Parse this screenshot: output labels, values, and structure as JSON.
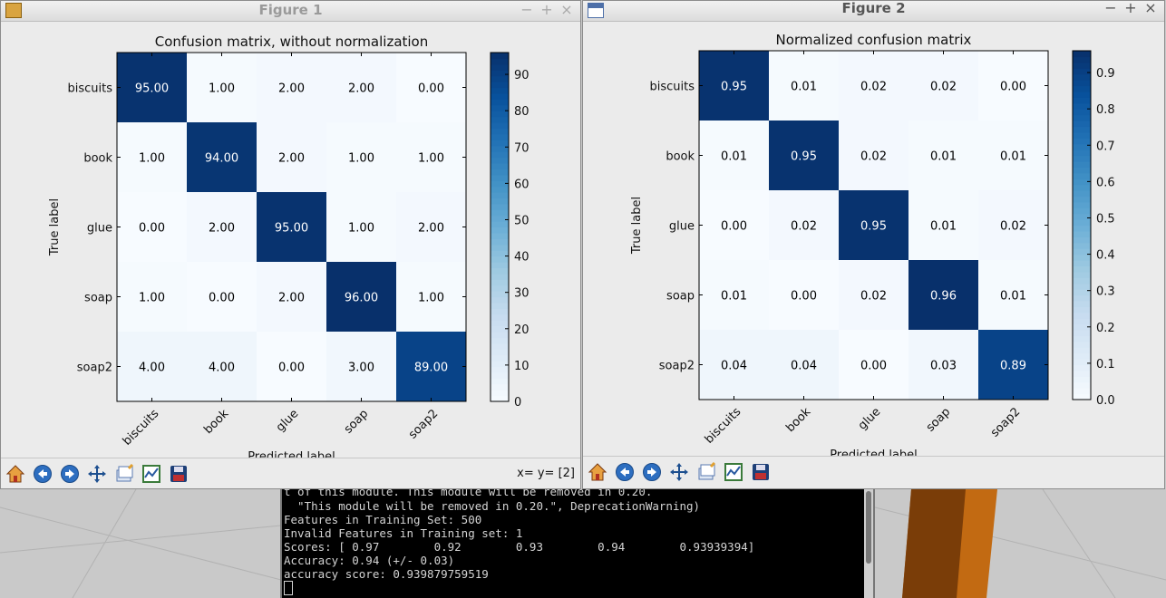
{
  "figure1": {
    "title": "Figure 1",
    "chart_data": {
      "type": "heatmap",
      "title": "Confusion matrix, without normalization",
      "xlabel": "Predicted label",
      "ylabel": "True label",
      "x_categories": [
        "biscuits",
        "book",
        "glue",
        "soap",
        "soap2"
      ],
      "y_categories": [
        "biscuits",
        "book",
        "glue",
        "soap",
        "soap2"
      ],
      "values": [
        [
          "95.00",
          "1.00",
          "2.00",
          "2.00",
          "0.00"
        ],
        [
          "1.00",
          "94.00",
          "2.00",
          "1.00",
          "1.00"
        ],
        [
          "0.00",
          "2.00",
          "95.00",
          "1.00",
          "2.00"
        ],
        [
          "1.00",
          "0.00",
          "2.00",
          "96.00",
          "1.00"
        ],
        [
          "4.00",
          "4.00",
          "0.00",
          "3.00",
          "89.00"
        ]
      ],
      "colormap": "Blues",
      "colorbar_ticks": [
        "0",
        "10",
        "20",
        "30",
        "40",
        "50",
        "60",
        "70",
        "80",
        "90"
      ],
      "colorbar_range": [
        0,
        96
      ]
    },
    "coords": "x= y= [2]"
  },
  "figure2": {
    "title": "Figure 2",
    "chart_data": {
      "type": "heatmap",
      "title": "Normalized confusion matrix",
      "xlabel": "Predicted label",
      "ylabel": "True label",
      "x_categories": [
        "biscuits",
        "book",
        "glue",
        "soap",
        "soap2"
      ],
      "y_categories": [
        "biscuits",
        "book",
        "glue",
        "soap",
        "soap2"
      ],
      "values": [
        [
          "0.95",
          "0.01",
          "0.02",
          "0.02",
          "0.00"
        ],
        [
          "0.01",
          "0.95",
          "0.02",
          "0.01",
          "0.01"
        ],
        [
          "0.00",
          "0.02",
          "0.95",
          "0.01",
          "0.02"
        ],
        [
          "0.01",
          "0.00",
          "0.02",
          "0.96",
          "0.01"
        ],
        [
          "0.04",
          "0.04",
          "0.00",
          "0.03",
          "0.89"
        ]
      ],
      "colormap": "Blues",
      "colorbar_ticks": [
        "0.0",
        "0.1",
        "0.2",
        "0.3",
        "0.4",
        "0.5",
        "0.6",
        "0.7",
        "0.8",
        "0.9"
      ],
      "colorbar_range": [
        0,
        0.96
      ]
    }
  },
  "toolbar": {
    "buttons": [
      "home-icon",
      "back-arrow-icon",
      "forward-arrow-icon",
      "pan-icon",
      "zoom-icon",
      "configure-subplots-icon",
      "save-icon"
    ]
  },
  "window_buttons": {
    "minimize": "−",
    "maximize": "+",
    "close": "×"
  },
  "terminal": {
    "lines": [
      "t of this module. This module will be removed in 0.20.",
      "  \"This module will be removed in 0.20.\", DeprecationWarning)",
      "Features in Training Set: 500",
      "Invalid Features in Training set: 1",
      "Scores: [ 0.97        0.92        0.93        0.94        0.93939394]",
      "Accuracy: 0.94 (+/- 0.03)",
      "accuracy score: 0.939879759519"
    ]
  },
  "colors": {
    "desktop": "#c9c9c9",
    "orange_object": "#c26a12",
    "terminal_bg": "#000000"
  }
}
